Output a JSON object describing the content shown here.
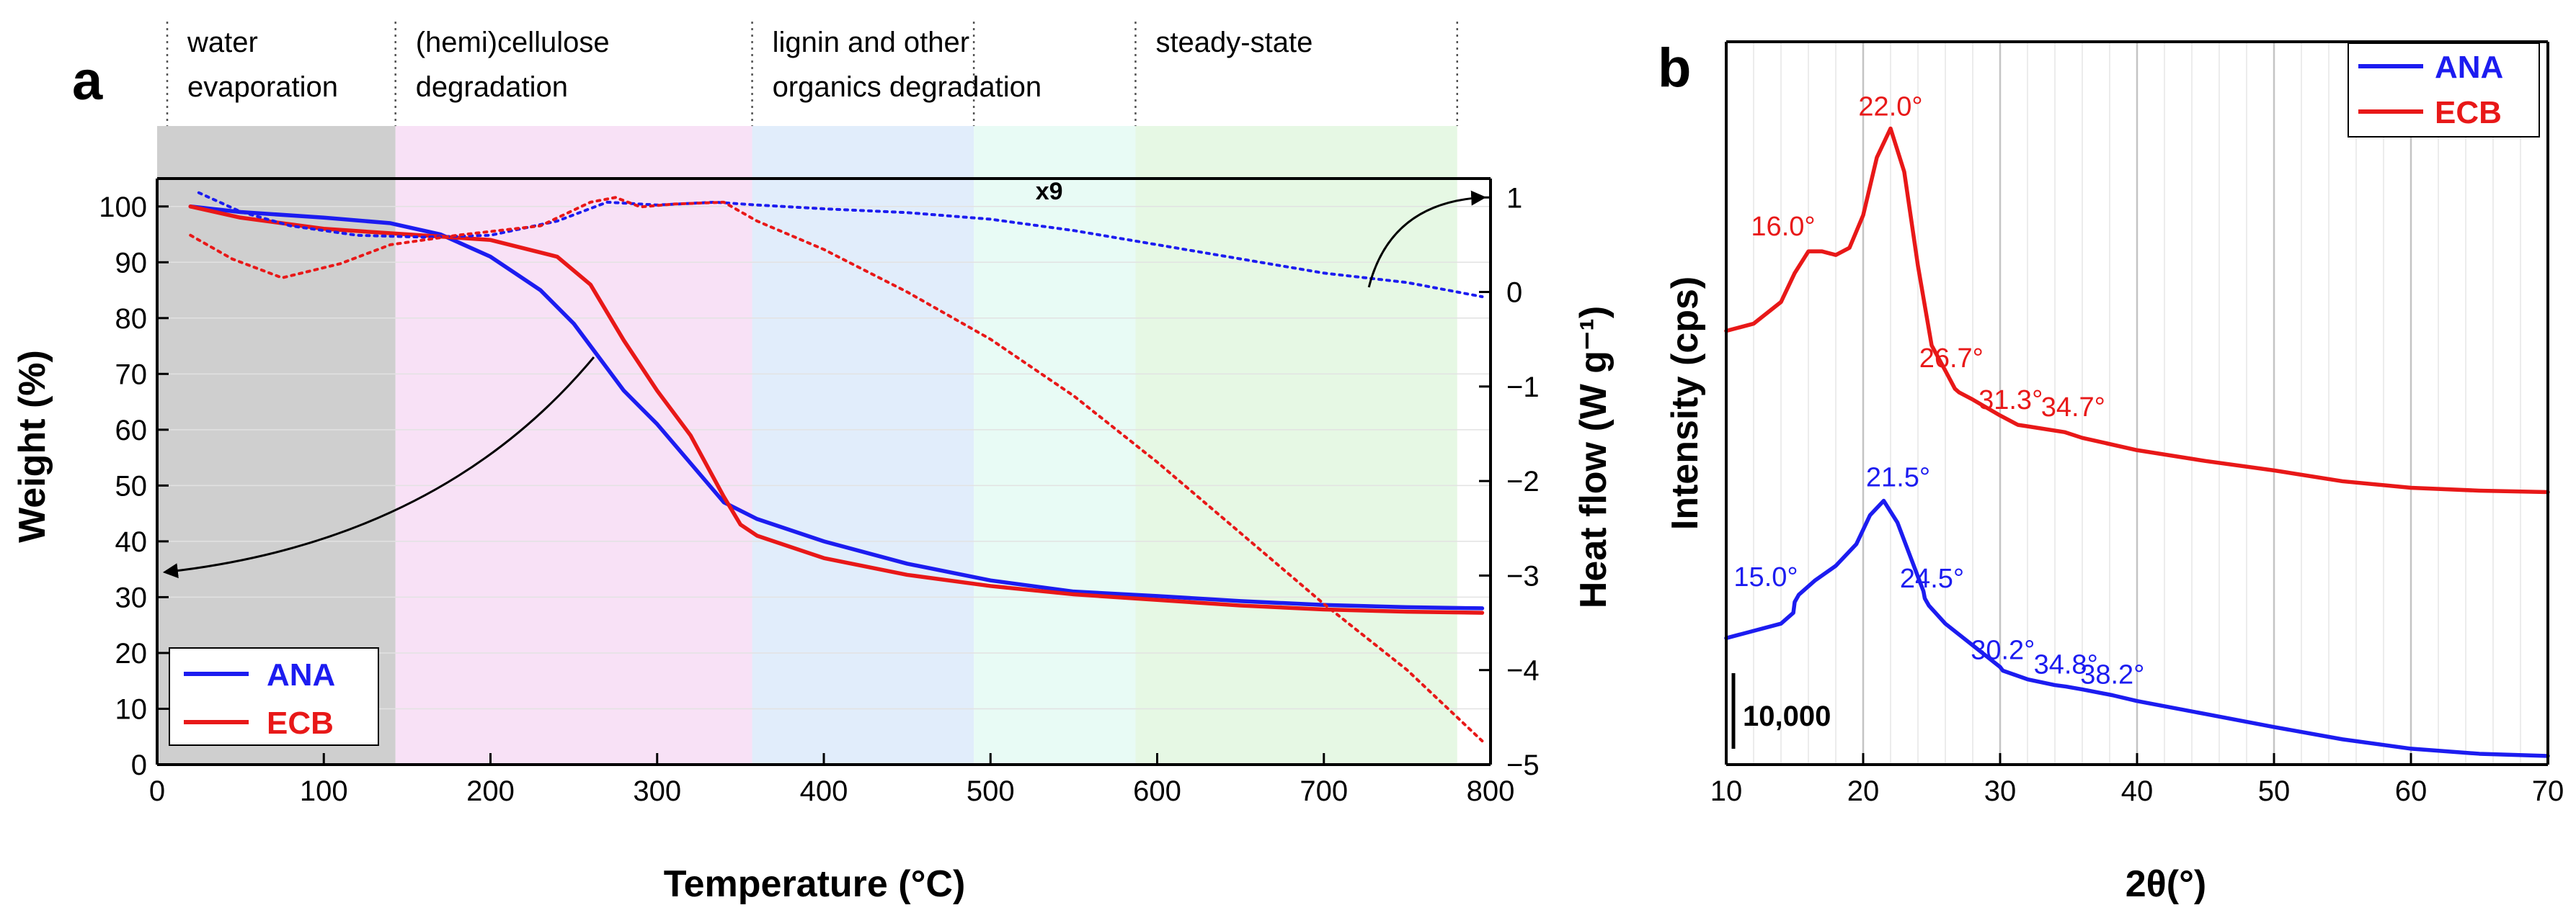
{
  "chart_data": [
    {
      "panel_label": "a",
      "type": "line",
      "xlabel": "Temperature (°C)",
      "ylabel": "Weight (%)",
      "y2label": "Heat flow (W g⁻¹)",
      "xlim": [
        0,
        800
      ],
      "ylim": [
        0,
        105
      ],
      "y2lim": [
        -5,
        1.2
      ],
      "xticks": [
        "0",
        "100",
        "200",
        "300",
        "400",
        "500",
        "600",
        "700",
        "800"
      ],
      "yticks": [
        "0",
        "10",
        "20",
        "30",
        "40",
        "50",
        "60",
        "70",
        "80",
        "90",
        "100"
      ],
      "y2ticks": [
        "−5",
        "−4",
        "−3",
        "−2",
        "−1",
        "0",
        "1"
      ],
      "regions": [
        {
          "label_lines": [
            "water",
            "evaporation"
          ],
          "x_start": 0,
          "x_end": 143,
          "color": "#cfcfcf"
        },
        {
          "label_lines": [
            "(hemi)cellulose",
            "degradation"
          ],
          "x_start": 143,
          "x_end": 357,
          "color": "#f8e1f6"
        },
        {
          "label_lines": [
            "lignin and other",
            "organics degradation"
          ],
          "x_start": 357,
          "x_end": 490,
          "color": "#e1edfb"
        },
        {
          "label_lines": [
            "",
            ""
          ],
          "x_start": 490,
          "x_end": 587,
          "color": "#e8fbf5"
        },
        {
          "label_lines": [
            "steady-state"
          ],
          "x_start": 587,
          "x_end": 780,
          "color": "#e6f8e4"
        }
      ],
      "annotation": "x9",
      "legend_location": "bottom-left",
      "series": [
        {
          "name": "ANA",
          "color": "#1c1cf0",
          "kind": "weight",
          "x": [
            20,
            50,
            100,
            140,
            170,
            200,
            230,
            250,
            265,
            280,
            300,
            320,
            340,
            360,
            400,
            450,
            500,
            550,
            600,
            650,
            700,
            750,
            795
          ],
          "y": [
            100,
            99,
            98,
            97,
            95,
            91,
            85,
            79,
            73,
            67,
            61,
            54,
            47,
            44,
            40,
            36,
            33,
            31,
            30.2,
            29.3,
            28.6,
            28.2,
            28
          ]
        },
        {
          "name": "ECB",
          "color": "#e81818",
          "kind": "weight",
          "x": [
            20,
            50,
            100,
            150,
            200,
            240,
            260,
            280,
            300,
            320,
            340,
            350,
            360,
            400,
            450,
            500,
            550,
            600,
            650,
            700,
            750,
            795
          ],
          "y": [
            100,
            98,
            96,
            95,
            94,
            91,
            86,
            76,
            67,
            59,
            48,
            43,
            41,
            37,
            34,
            32,
            30.5,
            29.5,
            28.5,
            27.8,
            27.4,
            27.2
          ]
        },
        {
          "name": "ANA heat flow",
          "color": "#1c1cf0",
          "kind": "heatflow",
          "x": [
            25,
            50,
            80,
            120,
            160,
            200,
            240,
            270,
            300,
            335,
            360,
            400,
            450,
            500,
            550,
            600,
            650,
            700,
            750,
            795
          ],
          "y": [
            1.05,
            0.85,
            0.7,
            0.6,
            0.58,
            0.6,
            0.75,
            0.95,
            0.92,
            0.95,
            0.92,
            0.88,
            0.84,
            0.77,
            0.65,
            0.5,
            0.35,
            0.2,
            0.1,
            -0.05
          ]
        },
        {
          "name": "ECB heat flow",
          "color": "#e81818",
          "kind": "heatflow",
          "x": [
            20,
            45,
            75,
            110,
            140,
            180,
            230,
            260,
            275,
            290,
            310,
            340,
            360,
            400,
            450,
            500,
            550,
            600,
            650,
            700,
            750,
            795
          ],
          "y": [
            0.6,
            0.35,
            0.15,
            0.3,
            0.5,
            0.6,
            0.7,
            0.95,
            1.0,
            0.9,
            0.93,
            0.95,
            0.75,
            0.45,
            0.0,
            -0.5,
            -1.1,
            -1.8,
            -2.55,
            -3.3,
            -4.0,
            -4.75
          ]
        }
      ]
    },
    {
      "panel_label": "b",
      "type": "line",
      "xlabel": "2θ(°)",
      "ylabel": "Intensity (cps)",
      "xlim": [
        10,
        70
      ],
      "ylim": [
        0,
        100
      ],
      "xticks": [
        "10",
        "20",
        "30",
        "40",
        "50",
        "60",
        "70"
      ],
      "scale_bar_label": "10,000",
      "legend_location": "top-right",
      "series": [
        {
          "name": "ANA",
          "color": "#1c1cf0",
          "x": [
            10,
            12,
            14,
            14.9,
            15.0,
            15.3,
            16.5,
            18,
            19.5,
            20.5,
            21.5,
            22.5,
            23.5,
            24.4,
            24.5,
            24.8,
            26,
            28,
            30,
            30.2,
            32,
            34,
            34.8,
            36,
            38.2,
            40,
            45,
            50,
            55,
            60,
            65,
            70
          ],
          "y": [
            17.5,
            18.5,
            19.5,
            21,
            22.5,
            23.5,
            25.5,
            27.5,
            30.5,
            34.5,
            36.5,
            33.5,
            28.5,
            24,
            23,
            22,
            19.5,
            16.5,
            13.5,
            13,
            11.8,
            11,
            10.8,
            10.4,
            9.6,
            8.8,
            7,
            5.2,
            3.5,
            2.2,
            1.5,
            1.2
          ]
        },
        {
          "name": "ECB",
          "color": "#e81818",
          "x": [
            10,
            12,
            14,
            15,
            16,
            17,
            18,
            19,
            20,
            21,
            22,
            23,
            24,
            25,
            26,
            26.7,
            27,
            28,
            30,
            31.3,
            32,
            34.7,
            36,
            40,
            45,
            50,
            55,
            60,
            65,
            70
          ],
          "y": [
            60,
            61,
            64,
            68,
            71,
            71,
            70.5,
            71.5,
            76,
            84,
            88,
            82,
            69,
            58,
            54.5,
            52,
            51.5,
            50.5,
            48.3,
            47,
            46.8,
            46,
            45.2,
            43.5,
            42,
            40.7,
            39.2,
            38.3,
            37.9,
            37.7
          ]
        }
      ],
      "peak_labels": [
        {
          "text": "22.0°",
          "x": 22.0,
          "y": 88,
          "color": "#e81818"
        },
        {
          "text": "16.0°",
          "x": 16.0,
          "y": 71,
          "color": "#e81818"
        },
        {
          "text": "26.7°",
          "x": 26.7,
          "y": 52,
          "color": "#e81818"
        },
        {
          "text": "31.3°",
          "x": 31.3,
          "y": 47,
          "color": "#e81818"
        },
        {
          "text": "34.7°",
          "x": 34.7,
          "y": 46,
          "color": "#e81818"
        },
        {
          "text": "21.5°",
          "x": 21.5,
          "y": 36.5,
          "color": "#1c1cf0"
        },
        {
          "text": "15.0°",
          "x": 15.0,
          "y": 22.5,
          "color": "#1c1cf0"
        },
        {
          "text": "24.5°",
          "x": 24.5,
          "y": 23,
          "color": "#1c1cf0"
        },
        {
          "text": "30.2°",
          "x": 30.2,
          "y": 13,
          "color": "#1c1cf0"
        },
        {
          "text": "34.8°",
          "x": 34.8,
          "y": 10.8,
          "color": "#1c1cf0"
        },
        {
          "text": "38.2°",
          "x": 38.2,
          "y": 9.6,
          "color": "#1c1cf0"
        }
      ]
    }
  ]
}
